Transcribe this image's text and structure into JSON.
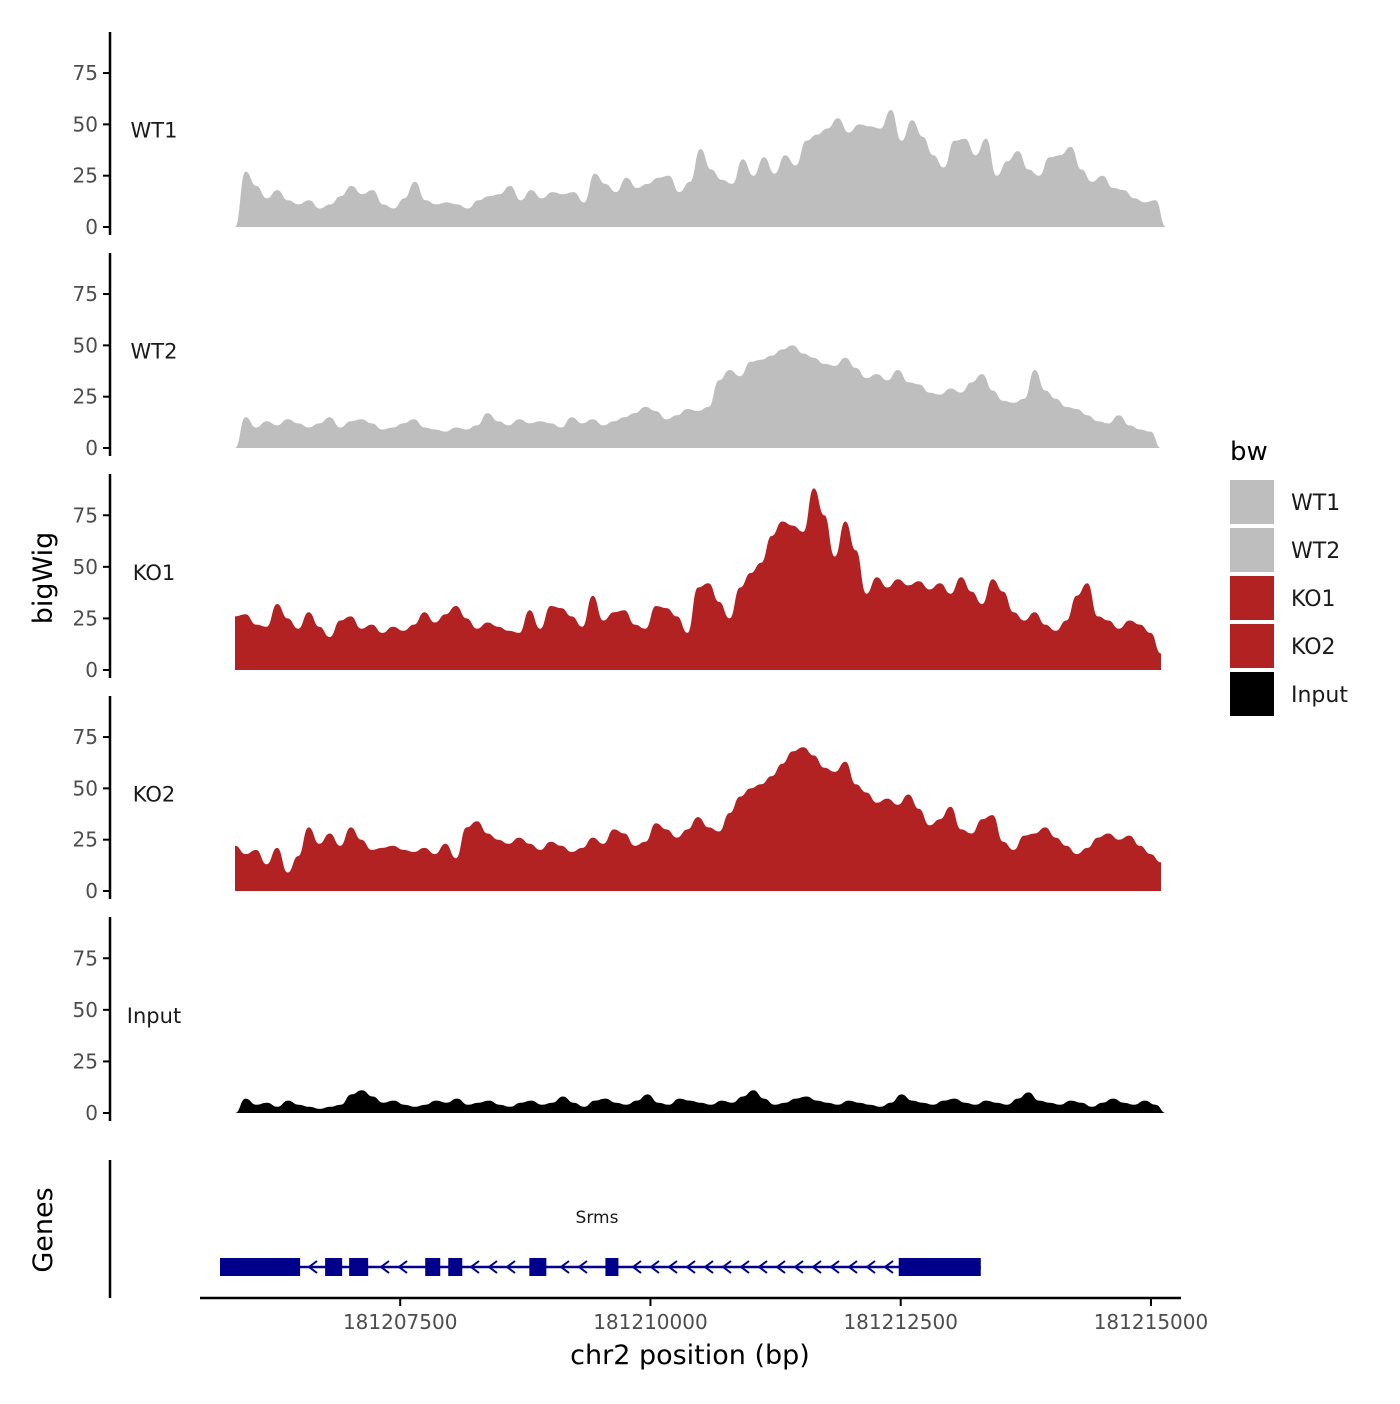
{
  "chart_data": {
    "type": "area",
    "chromosome": "chr2",
    "region": [
      181205500,
      181215300
    ],
    "xlabel": "chr2 position (bp)",
    "ylabel": "bigWig",
    "genes_label": "Genes",
    "ylim": [
      0,
      95
    ],
    "yticks": [
      0,
      25,
      50,
      75
    ],
    "xticks": [
      181207500,
      181210000,
      181212500,
      181215000
    ],
    "xticks_text": [
      "181207500",
      "181210000",
      "181212500",
      "181215000"
    ],
    "legend": {
      "title": "bw",
      "entries": [
        {
          "label": "WT1",
          "color": "#bebebe"
        },
        {
          "label": "WT2",
          "color": "#bebebe"
        },
        {
          "label": "KO1",
          "color": "#b22222"
        },
        {
          "label": "KO2",
          "color": "#b22222"
        },
        {
          "label": "Input",
          "color": "#000000"
        }
      ]
    },
    "series": [
      {
        "name": "WT1",
        "color": "#bebebe",
        "x_start": 181205850,
        "x_end": 181215150,
        "values": [
          0,
          27,
          20,
          14,
          18,
          13,
          11,
          13,
          9,
          11,
          15,
          20,
          16,
          18,
          11,
          9,
          14,
          22,
          13,
          11,
          12,
          11,
          9,
          13,
          15,
          16,
          20,
          13,
          18,
          14,
          17,
          16,
          17,
          12,
          26,
          21,
          17,
          24,
          19,
          21,
          24,
          25,
          17,
          22,
          38,
          28,
          23,
          21,
          33,
          25,
          34,
          26,
          35,
          30,
          42,
          45,
          48,
          53,
          46,
          50,
          49,
          48,
          57,
          42,
          52,
          44,
          35,
          29,
          42,
          43,
          35,
          43,
          25,
          32,
          37,
          28,
          25,
          34,
          35,
          39,
          28,
          22,
          25,
          19,
          18,
          14,
          12,
          13,
          0
        ]
      },
      {
        "name": "WT2",
        "color": "#bebebe",
        "x_start": 181205850,
        "x_end": 181215100,
        "values": [
          0,
          15,
          10,
          13,
          11,
          14,
          12,
          10,
          12,
          15,
          10,
          13,
          14,
          12,
          9,
          10,
          12,
          14,
          10,
          9,
          8,
          10,
          9,
          11,
          17,
          13,
          11,
          14,
          12,
          13,
          12,
          10,
          15,
          12,
          14,
          11,
          13,
          15,
          17,
          20,
          18,
          14,
          16,
          19,
          18,
          20,
          33,
          38,
          35,
          42,
          43,
          45,
          48,
          50,
          46,
          44,
          41,
          40,
          44,
          39,
          34,
          36,
          33,
          38,
          32,
          31,
          27,
          26,
          29,
          27,
          32,
          36,
          28,
          23,
          22,
          24,
          38,
          28,
          24,
          20,
          19,
          16,
          13,
          12,
          16,
          11,
          9,
          8,
          0
        ]
      },
      {
        "name": "KO1",
        "color": "#b22222",
        "x_start": 181205850,
        "x_end": 181215100,
        "values": [
          26,
          27,
          22,
          21,
          32,
          25,
          20,
          28,
          21,
          16,
          24,
          26,
          20,
          22,
          18,
          21,
          19,
          22,
          28,
          23,
          27,
          31,
          25,
          20,
          23,
          21,
          19,
          18,
          29,
          20,
          31,
          30,
          26,
          21,
          36,
          24,
          28,
          29,
          22,
          20,
          31,
          30,
          26,
          18,
          40,
          42,
          33,
          25,
          40,
          47,
          52,
          65,
          72,
          70,
          67,
          88,
          75,
          55,
          72,
          58,
          37,
          45,
          40,
          44,
          41,
          43,
          39,
          42,
          37,
          45,
          38,
          32,
          44,
          38,
          28,
          24,
          28,
          22,
          19,
          24,
          36,
          42,
          26,
          24,
          20,
          24,
          22,
          18,
          8
        ]
      },
      {
        "name": "KO2",
        "color": "#b22222",
        "x_start": 181205850,
        "x_end": 181215100,
        "values": [
          22,
          18,
          20,
          13,
          21,
          9,
          17,
          31,
          23,
          28,
          22,
          31,
          25,
          20,
          21,
          22,
          20,
          19,
          21,
          18,
          23,
          16,
          31,
          34,
          28,
          25,
          23,
          26,
          23,
          20,
          24,
          22,
          19,
          21,
          26,
          23,
          30,
          28,
          22,
          24,
          33,
          30,
          26,
          30,
          36,
          31,
          29,
          38,
          46,
          50,
          52,
          56,
          62,
          68,
          70,
          66,
          60,
          58,
          63,
          52,
          48,
          43,
          45,
          42,
          47,
          40,
          32,
          35,
          41,
          30,
          28,
          35,
          37,
          24,
          20,
          27,
          28,
          31,
          26,
          22,
          18,
          21,
          26,
          28,
          25,
          27,
          22,
          18,
          14
        ]
      },
      {
        "name": "Input",
        "color": "#000000",
        "x_start": 181205850,
        "x_end": 181215150,
        "values": [
          0,
          7,
          4,
          5,
          3,
          6,
          4,
          3,
          2,
          3,
          4,
          9,
          11,
          8,
          5,
          6,
          4,
          3,
          4,
          6,
          5,
          7,
          4,
          5,
          6,
          4,
          3,
          5,
          6,
          4,
          5,
          8,
          5,
          3,
          6,
          7,
          5,
          4,
          6,
          9,
          5,
          4,
          7,
          6,
          5,
          4,
          6,
          5,
          8,
          11,
          7,
          4,
          5,
          7,
          8,
          6,
          5,
          4,
          6,
          5,
          4,
          3,
          5,
          9,
          6,
          5,
          4,
          6,
          7,
          5,
          4,
          6,
          5,
          4,
          7,
          10,
          6,
          5,
          4,
          6,
          5,
          3,
          5,
          7,
          5,
          4,
          6,
          4,
          0
        ]
      }
    ],
    "gene_track": {
      "name": "Srms",
      "strand": "-",
      "color": "#00008b",
      "line": [
        181205700,
        181213300
      ],
      "exons": [
        [
          181205700,
          181206500
        ],
        [
          181206750,
          181206920
        ],
        [
          181206990,
          181207180
        ],
        [
          181207750,
          181207900
        ],
        [
          181207980,
          181208120
        ],
        [
          181208790,
          181208960
        ],
        [
          181209550,
          181209680
        ],
        [
          181212480,
          181213300
        ]
      ]
    }
  }
}
